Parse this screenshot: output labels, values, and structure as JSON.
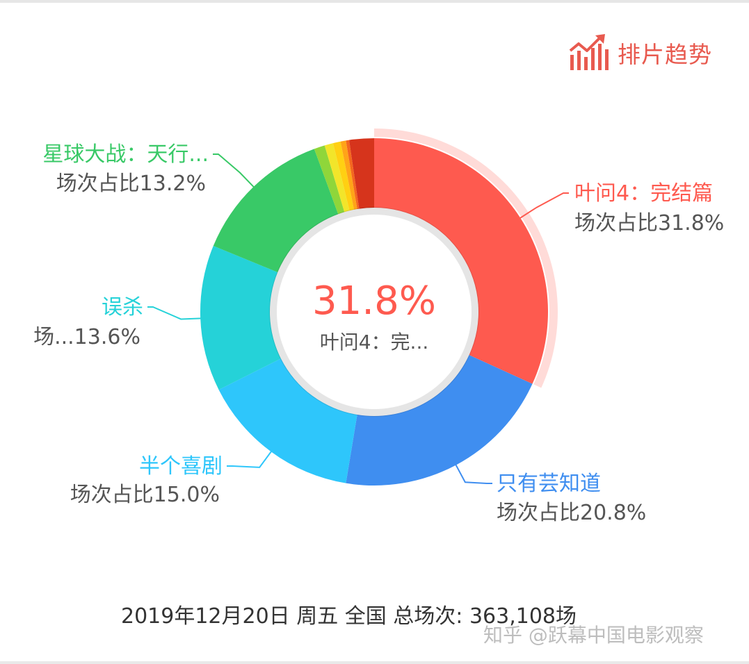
{
  "header": {
    "trend_label": "排片趋势",
    "trend_icon": "bar-chart-trend-icon"
  },
  "colors": {
    "accent": "#e85a4f",
    "label_gray": "#555555"
  },
  "chart_data": {
    "type": "pie",
    "style": "donut",
    "metric_label": "场次占比",
    "center": {
      "value": "31.8%",
      "label": "叶问4：完..."
    },
    "highlighted_index": 0,
    "slices": [
      {
        "name": "叶问4：完结篇",
        "value": 31.8,
        "color": "#fe5a4f",
        "label_name": "叶问4：完结篇",
        "label_value": "场次占比31.8%"
      },
      {
        "name": "只有芸知道",
        "value": 20.8,
        "color": "#3f8ef0",
        "label_name": "只有芸知道",
        "label_value": "场次占比20.8%"
      },
      {
        "name": "半个喜剧",
        "value": 15.0,
        "color": "#2ec6fb",
        "label_name": "半个喜剧",
        "label_value": "场次占比15.0%"
      },
      {
        "name": "误杀",
        "value": 13.6,
        "color": "#25d2d8",
        "label_name": "误杀",
        "label_value": "场...13.6%"
      },
      {
        "name": "星球大战：天行...",
        "value": 13.2,
        "color": "#39c967",
        "label_name": "星球大战：天行...",
        "label_value": "场次占比13.2%"
      },
      {
        "name": "",
        "value": 1.0,
        "color": "#8fd63a"
      },
      {
        "name": "",
        "value": 0.8,
        "color": "#f2e52a"
      },
      {
        "name": "",
        "value": 0.7,
        "color": "#ffd012"
      },
      {
        "name": "",
        "value": 0.5,
        "color": "#ffa418"
      },
      {
        "name": "",
        "value": 0.3,
        "color": "#f4671e"
      },
      {
        "name": "",
        "value": 2.3,
        "color": "#d6341c"
      }
    ]
  },
  "footer": {
    "summary": "2019年12月20日 周五 全国 总场次: 363,108场"
  },
  "watermark": "知乎 @跃幕中国电影观察"
}
